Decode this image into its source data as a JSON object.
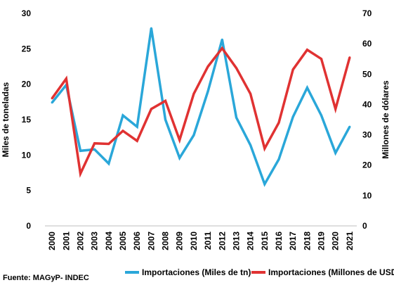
{
  "chart_data": {
    "type": "line",
    "categories": [
      "2000",
      "2001",
      "2002",
      "2003",
      "2004",
      "2005",
      "2006",
      "2007",
      "2008",
      "2009",
      "2010",
      "2011",
      "2012",
      "2013",
      "2014",
      "2015",
      "2016",
      "2017",
      "2018",
      "2019",
      "2020",
      "2021"
    ],
    "series": [
      {
        "name": "Importaciones (Miles de tn)",
        "axis": "left",
        "color": "#2aa7d9",
        "values": [
          17.4,
          19.9,
          10.6,
          10.8,
          8.8,
          15.6,
          14.0,
          27.9,
          15.0,
          9.6,
          12.8,
          19.0,
          26.3,
          15.3,
          11.4,
          5.9,
          9.4,
          15.4,
          19.5,
          15.6,
          10.3,
          14.0
        ]
      },
      {
        "name": "Importaciones (Millones de USD)",
        "axis": "right",
        "color": "#e03232",
        "values": [
          42.0,
          48.5,
          17.2,
          27.2,
          27.0,
          31.3,
          28.0,
          38.5,
          41.2,
          28.3,
          43.5,
          52.5,
          58.5,
          52.0,
          43.5,
          25.5,
          34.0,
          51.5,
          58.0,
          55.0,
          38.5,
          55.5
        ]
      }
    ],
    "y_left": {
      "label": "Miles de toneladas",
      "min": 0,
      "max": 30,
      "ticks": [
        "0",
        "5",
        "10",
        "15",
        "20",
        "25",
        "30"
      ]
    },
    "y_right": {
      "label": "Millones de dólares",
      "min": 0,
      "max": 70,
      "ticks": [
        "0",
        "10",
        "20",
        "30",
        "40",
        "50",
        "60",
        "70"
      ]
    },
    "grid": false,
    "legend_position": "bottom"
  },
  "source": "Fuente: MAGyP- INDEC"
}
